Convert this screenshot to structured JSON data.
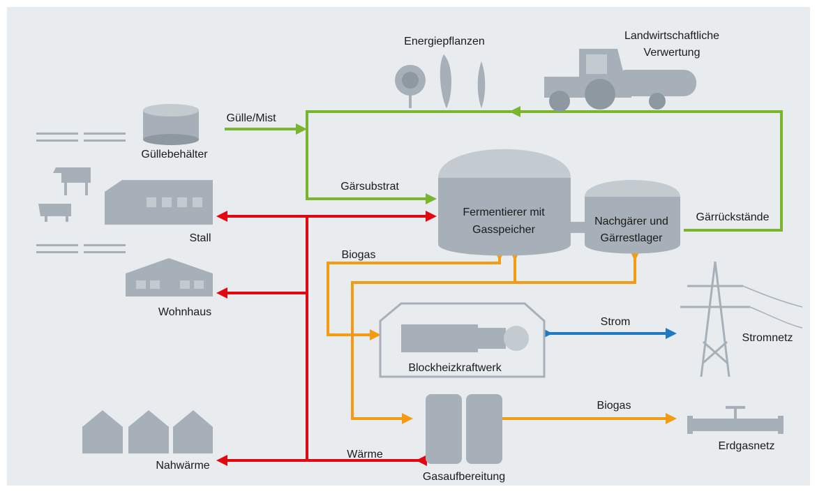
{
  "nodes": [
    {
      "lines": [
        "Energiepflanzen"
      ]
    },
    {
      "lines": [
        "Landwirtschaftliche",
        "Verwertung"
      ]
    },
    {
      "lines": [
        "Güllebehälter"
      ]
    },
    {
      "lines": [
        "Fermentierer mit",
        "Gasspeicher"
      ]
    },
    {
      "lines": [
        "Nachgärer und",
        "Gärrestlager"
      ]
    },
    {
      "lines": [
        "Stall"
      ]
    },
    {
      "lines": [
        "Wohnhaus"
      ]
    },
    {
      "lines": [
        "Stromnetz"
      ]
    },
    {
      "lines": [
        "Blockheizkraftwerk"
      ]
    },
    {
      "lines": [
        "Erdgasnetz"
      ]
    },
    {
      "lines": [
        "Nahwärme"
      ]
    },
    {
      "lines": [
        "Gasaufbereitung"
      ]
    }
  ],
  "flows": [
    {
      "label": "Gülle/Mist"
    },
    {
      "label": "Gärsubstrat"
    },
    {
      "label": "Gärrückstände"
    },
    {
      "label": "Biogas"
    },
    {
      "label": "Strom"
    },
    {
      "label": "Biogas"
    },
    {
      "label": "Wärme"
    }
  ]
}
